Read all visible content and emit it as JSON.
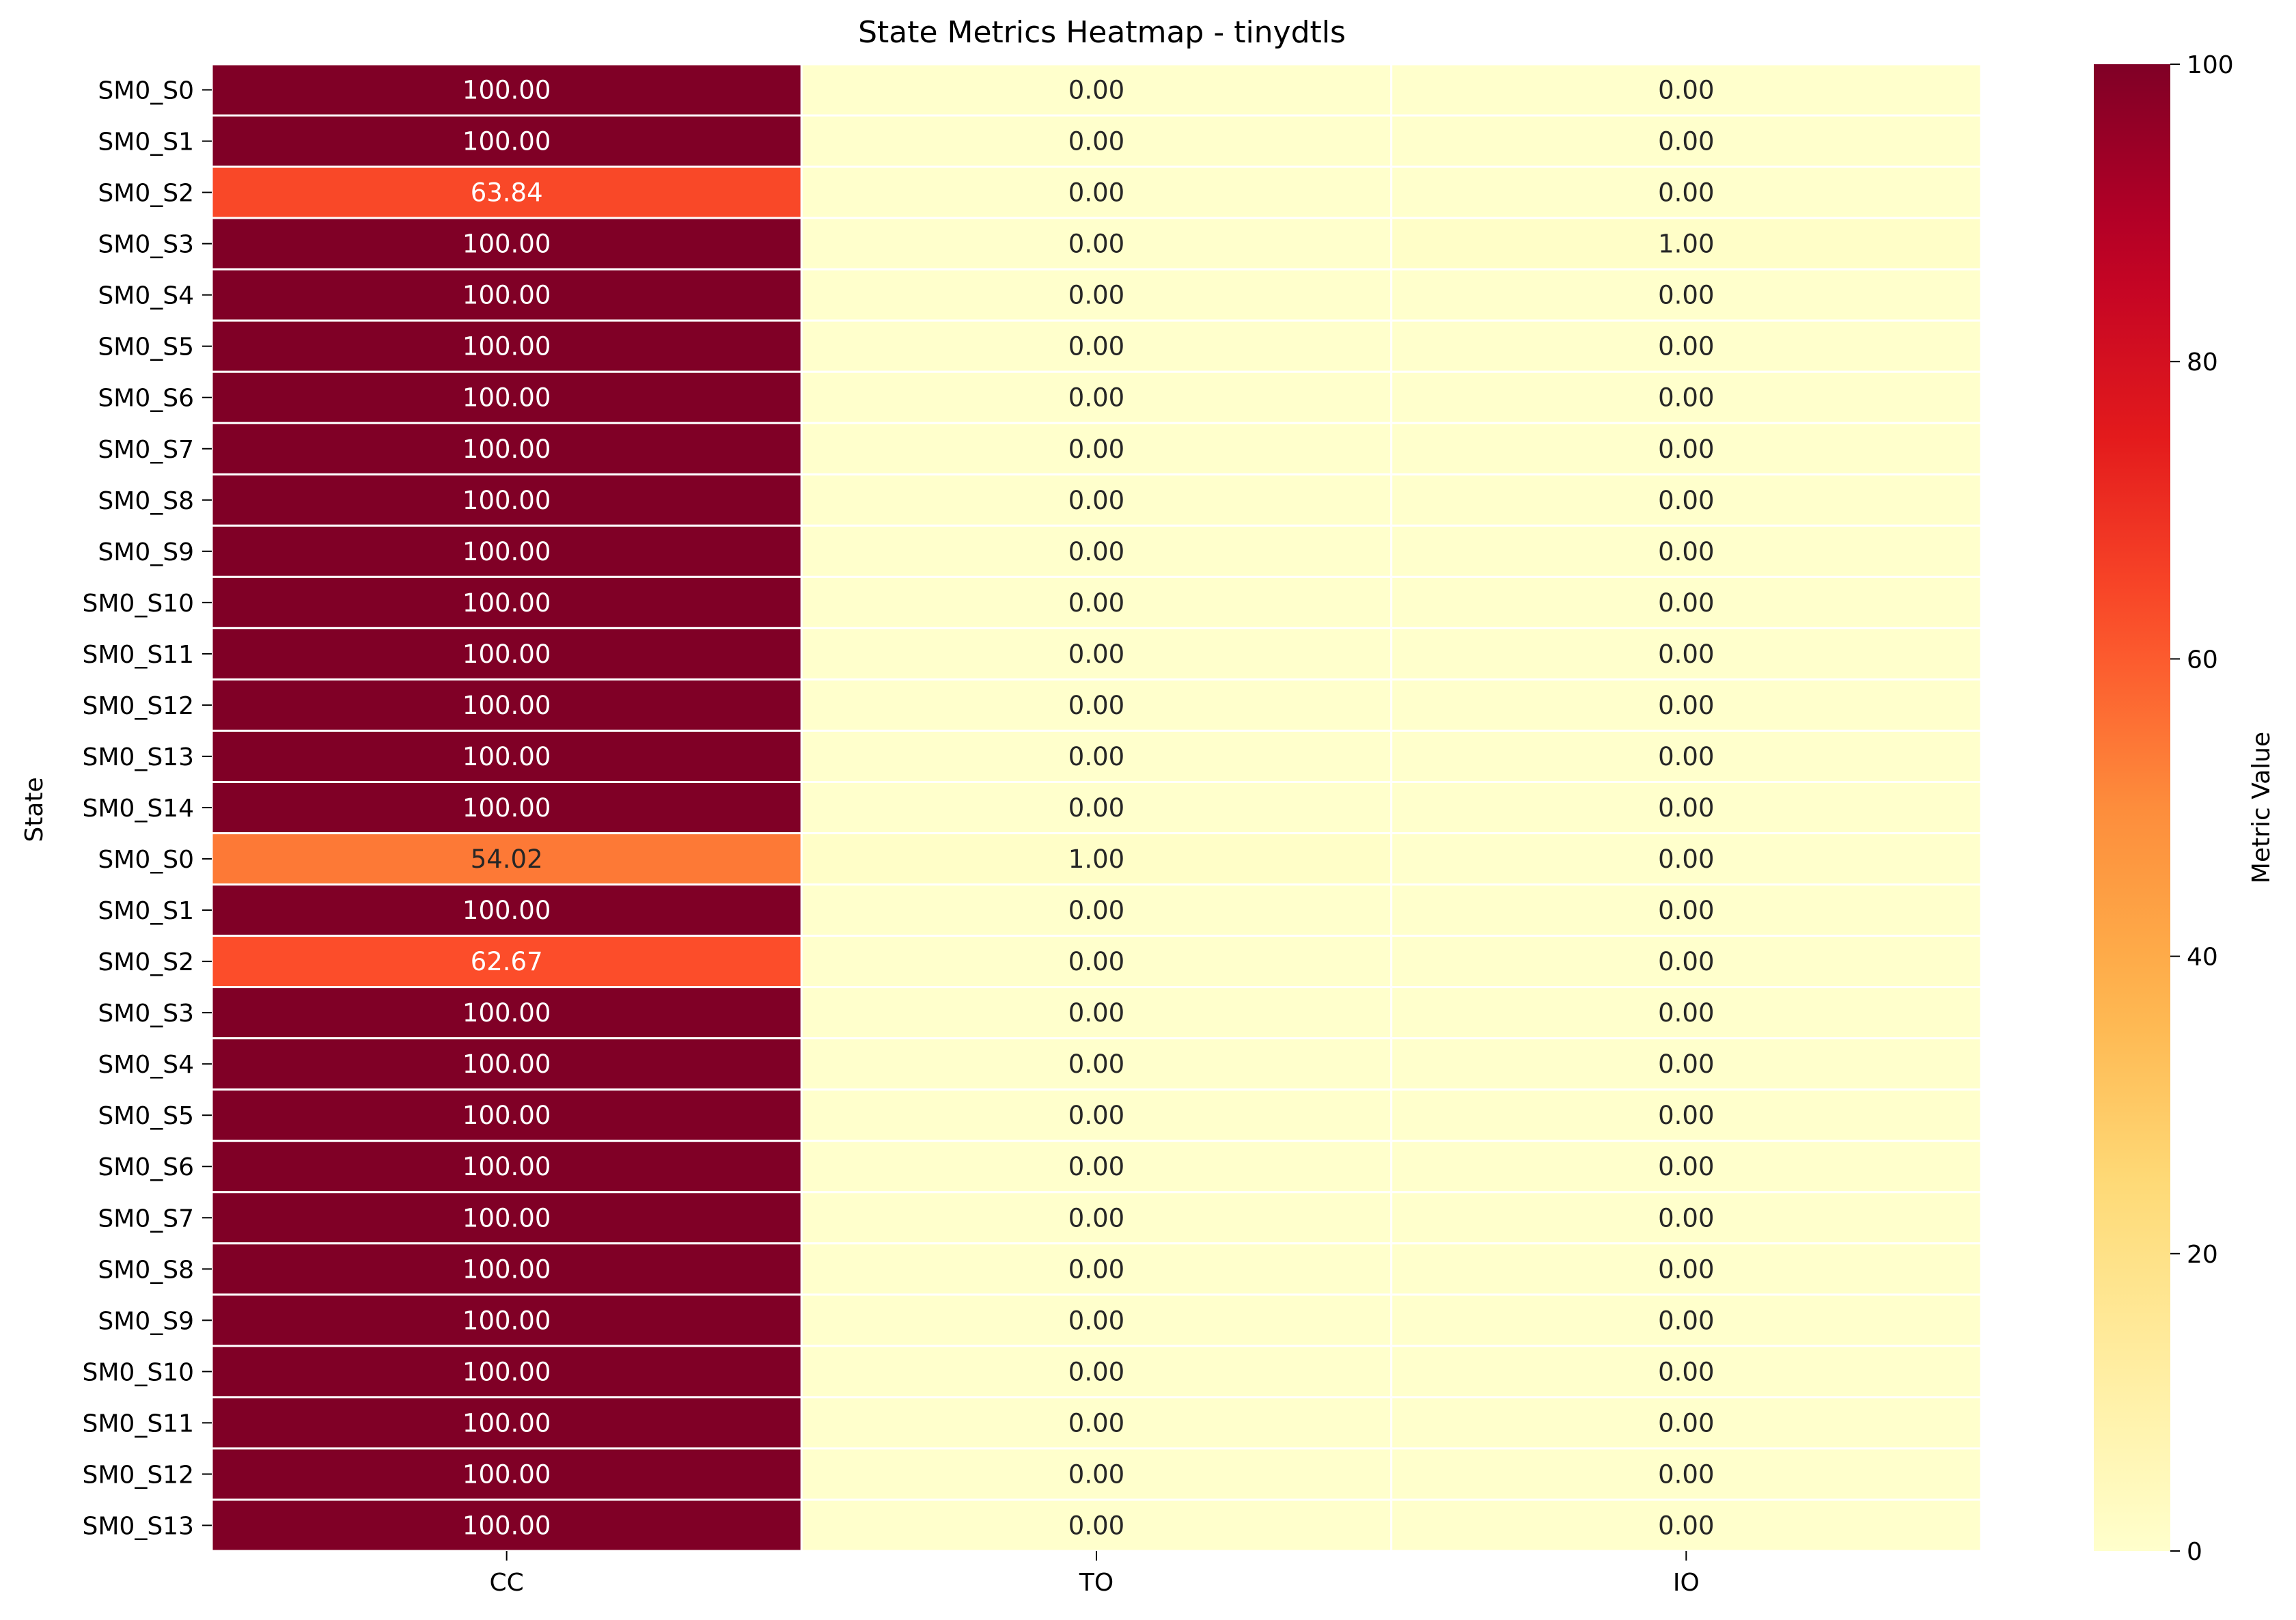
{
  "chart_data": {
    "type": "heatmap",
    "title": "State Metrics Heatmap - tinydtls",
    "xlabel": "",
    "ylabel": "State",
    "columns": [
      "CC",
      "TO",
      "IO"
    ],
    "rows": [
      "SM0_S0",
      "SM0_S1",
      "SM0_S2",
      "SM0_S3",
      "SM0_S4",
      "SM0_S5",
      "SM0_S6",
      "SM0_S7",
      "SM0_S8",
      "SM0_S9",
      "SM0_S10",
      "SM0_S11",
      "SM0_S12",
      "SM0_S13",
      "SM0_S14",
      "SM0_S0",
      "SM0_S1",
      "SM0_S2",
      "SM0_S3",
      "SM0_S4",
      "SM0_S5",
      "SM0_S6",
      "SM0_S7",
      "SM0_S8",
      "SM0_S9",
      "SM0_S10",
      "SM0_S11",
      "SM0_S12",
      "SM0_S13"
    ],
    "values": [
      [
        100,
        0,
        0
      ],
      [
        100,
        0,
        0
      ],
      [
        63.84,
        0,
        0
      ],
      [
        100,
        0,
        1
      ],
      [
        100,
        0,
        0
      ],
      [
        100,
        0,
        0
      ],
      [
        100,
        0,
        0
      ],
      [
        100,
        0,
        0
      ],
      [
        100,
        0,
        0
      ],
      [
        100,
        0,
        0
      ],
      [
        100,
        0,
        0
      ],
      [
        100,
        0,
        0
      ],
      [
        100,
        0,
        0
      ],
      [
        100,
        0,
        0
      ],
      [
        100,
        0,
        0
      ],
      [
        54.02,
        1,
        0
      ],
      [
        100,
        0,
        0
      ],
      [
        62.67,
        0,
        0
      ],
      [
        100,
        0,
        0
      ],
      [
        100,
        0,
        0
      ],
      [
        100,
        0,
        0
      ],
      [
        100,
        0,
        0
      ],
      [
        100,
        0,
        0
      ],
      [
        100,
        0,
        0
      ],
      [
        100,
        0,
        0
      ],
      [
        100,
        0,
        0
      ],
      [
        100,
        0,
        0
      ],
      [
        100,
        0,
        0
      ],
      [
        100,
        0,
        0
      ]
    ],
    "value_format_decimals": 2,
    "colorbar": {
      "label": "Metric Value",
      "min": 0,
      "max": 100,
      "ticks": [
        0,
        20,
        40,
        60,
        80,
        100
      ],
      "colormap": "YlOrRd"
    },
    "grid": false
  }
}
